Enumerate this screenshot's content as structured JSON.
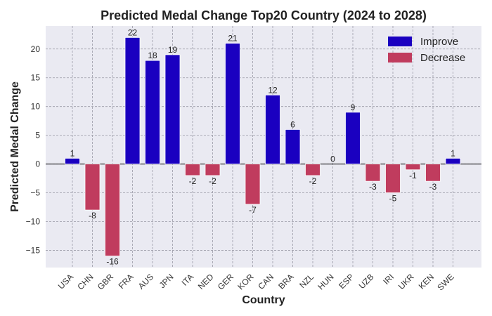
{
  "chart_data": {
    "type": "bar",
    "title": "Predicted Medal Change Top20 Country (2024 to 2028)",
    "xlabel": "Country",
    "ylabel": "Predicted Medal Change",
    "categories": [
      "USA",
      "CHN",
      "GBR",
      "FRA",
      "AUS",
      "JPN",
      "ITA",
      "NED",
      "GER",
      "KOR",
      "CAN",
      "BRA",
      "NZL",
      "HUN",
      "ESP",
      "UZB",
      "IRI",
      "UKR",
      "KEN",
      "SWE"
    ],
    "values": [
      1,
      -8,
      -16,
      22,
      18,
      19,
      -2,
      -2,
      21,
      -7,
      12,
      6,
      -2,
      0,
      9,
      -3,
      -5,
      -1,
      -3,
      1
    ],
    "ylim": [
      -18,
      24
    ],
    "yticks": [
      -15,
      -10,
      -5,
      0,
      5,
      10,
      15,
      20
    ],
    "grid": true,
    "legend_position": "top-right",
    "legend": [
      {
        "label": "Improve",
        "color": "#1a00c0"
      },
      {
        "label": "Decrease",
        "color": "#c03c5e"
      }
    ],
    "colors": {
      "improve": "#1a00c0",
      "decrease": "#c03c5e",
      "background": "#eaeaf2"
    }
  }
}
